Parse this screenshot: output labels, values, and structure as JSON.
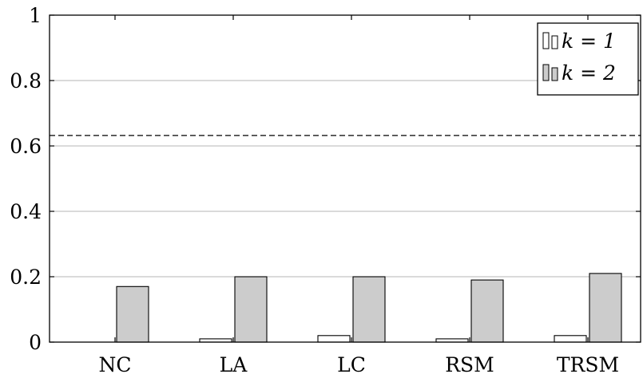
{
  "chart_data": {
    "type": "bar",
    "categories": [
      "NC",
      "LA",
      "LC",
      "RSM",
      "TRSM"
    ],
    "series": [
      {
        "name": "k = 1",
        "values": [
          0.0,
          0.01,
          0.02,
          0.01,
          0.02
        ],
        "color": "#ffffff"
      },
      {
        "name": "k = 2",
        "values": [
          0.17,
          0.2,
          0.2,
          0.19,
          0.21
        ],
        "color": "#cccccc"
      }
    ],
    "ylim": [
      0,
      1
    ],
    "yticks": [
      "0",
      "0.2",
      "0.4",
      "0.6",
      "0.8",
      "1"
    ],
    "ytick_values": [
      0,
      0.2,
      0.4,
      0.6,
      0.8,
      1
    ],
    "reference_line": 0.632,
    "grid": "horizontal",
    "legend": "top-right",
    "title": "",
    "xlabel": "",
    "ylabel": ""
  }
}
